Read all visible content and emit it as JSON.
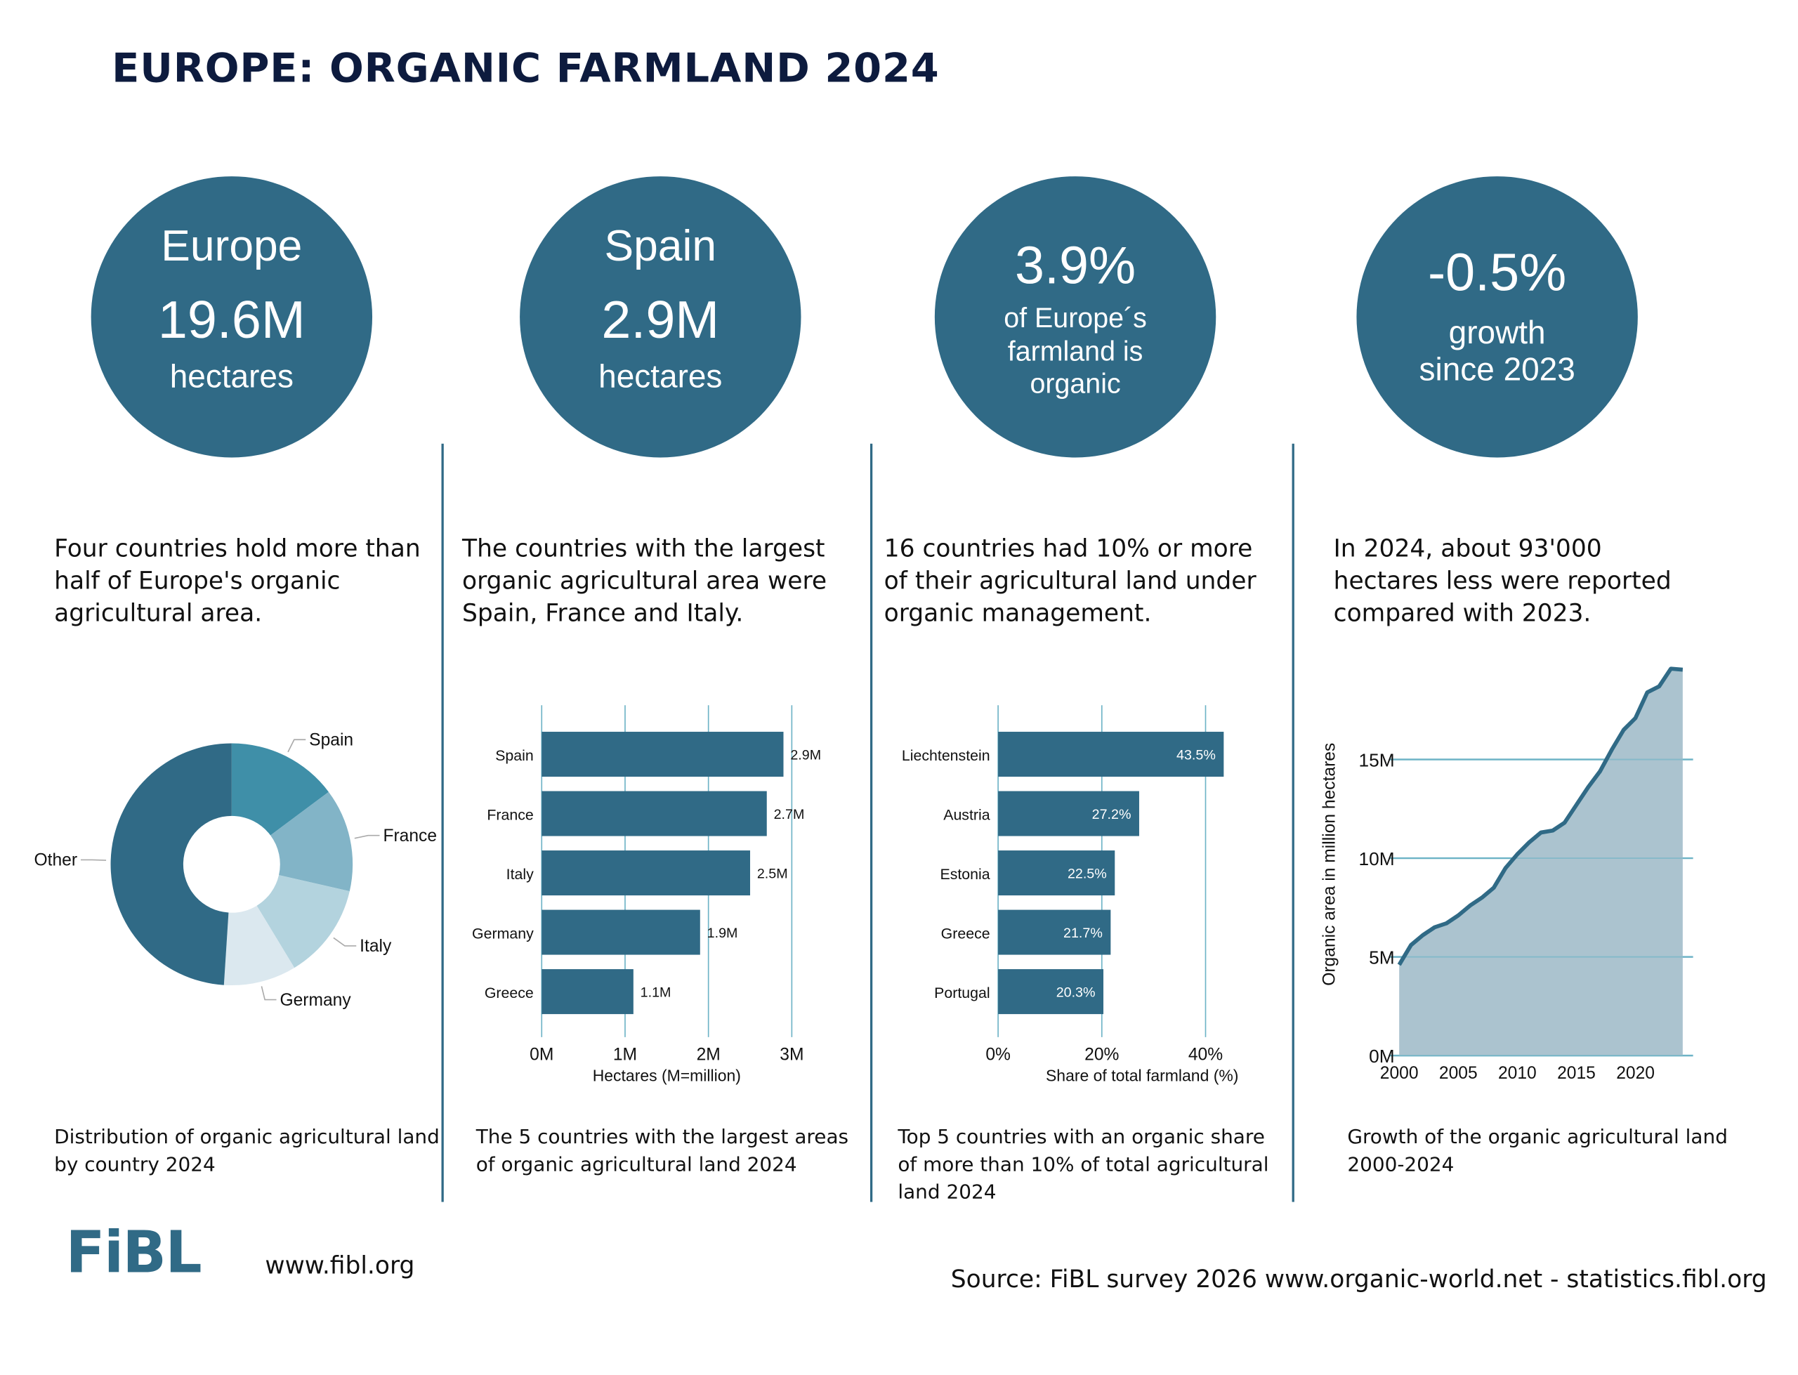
{
  "title": "EUROPE: ORGANIC FARMLAND 2024",
  "colors": {
    "primary": "#306a86",
    "spain": "#3f8fa8",
    "france": "#82b4c7",
    "italy": "#b3d3de",
    "germany": "#dbe8ef",
    "other": "#306a86",
    "area_fill": "#abc3cf",
    "grid": "#6db3c6"
  },
  "circles": [
    {
      "top": "Europe",
      "big": "19.6M",
      "bottom": "hectares"
    },
    {
      "top": "Spain",
      "big": "2.9M",
      "bottom": "hectares"
    },
    {
      "big": "3.9%",
      "l1": "of Europe´s",
      "l2": "farmland is",
      "l3": "organic"
    },
    {
      "big": "-0.5%",
      "l1": "growth",
      "l2": "since 2023"
    }
  ],
  "paragraphs": [
    "Four countries hold more than half of Europe's organic agricultural area.",
    "The countries with the largest organic agricultural area were Spain, France and Italy.",
    "16 countries had 10% or more of their agricultural land under organic management.",
    "In 2024, about 93'000 hectares less were reported compared with 2023."
  ],
  "captions": [
    "Distribution of organic agricultural land by country 2024",
    "The 5 countries with the largest areas of organic agricultural land 2024",
    "Top 5 countries with an organic  share of more than 10% of total agricultural land 2024",
    "Growth of the organic agricultural land 2000-2024"
  ],
  "chart_data": [
    {
      "type": "pie",
      "donut": true,
      "categories": [
        "Spain",
        "France",
        "Italy",
        "Germany",
        "Other"
      ],
      "values": [
        2.9,
        2.7,
        2.5,
        1.9,
        9.6
      ]
    },
    {
      "type": "bar",
      "orientation": "horizontal",
      "categories": [
        "Spain",
        "France",
        "Italy",
        "Germany",
        "Greece"
      ],
      "values": [
        2.9,
        2.7,
        2.5,
        1.9,
        1.1
      ],
      "data_labels": [
        "2.9M",
        "2.7M",
        "2.5M",
        "1.9M",
        "1.1M"
      ],
      "xlabel": "Hectares (M=million)",
      "xticks": [
        "0M",
        "1M",
        "2M",
        "3M"
      ],
      "xlim": [
        0,
        3
      ],
      "grid": true
    },
    {
      "type": "bar",
      "orientation": "horizontal",
      "categories": [
        "Liechtenstein",
        "Austria",
        "Estonia",
        "Greece",
        "Portugal"
      ],
      "values": [
        43.5,
        27.2,
        22.5,
        21.7,
        20.3
      ],
      "data_labels": [
        "43.5%",
        "27.2%",
        "22.5%",
        "21.7%",
        "20.3%"
      ],
      "xlabel": "Share of total farmland (%)",
      "xticks": [
        "0%",
        "20%",
        "40%"
      ],
      "xlim": [
        0,
        40
      ],
      "grid": true
    },
    {
      "type": "area",
      "x": [
        2000,
        2001,
        2002,
        2003,
        2004,
        2005,
        2006,
        2007,
        2008,
        2009,
        2010,
        2011,
        2012,
        2013,
        2014,
        2015,
        2016,
        2017,
        2018,
        2019,
        2020,
        2021,
        2022,
        2023,
        2024
      ],
      "y": [
        4.6,
        5.6,
        6.1,
        6.5,
        6.7,
        7.1,
        7.6,
        8.0,
        8.5,
        9.5,
        10.2,
        10.8,
        11.3,
        11.4,
        11.8,
        12.7,
        13.6,
        14.4,
        15.5,
        16.5,
        17.1,
        18.4,
        18.7,
        19.6,
        19.55
      ],
      "ylabel": "Organic area in million hectares",
      "yticks": [
        "0M",
        "5M",
        "10M",
        "15M"
      ],
      "xticks": [
        "2000",
        "2005",
        "2010",
        "2015",
        "2020"
      ],
      "ylim": [
        0,
        19.6
      ],
      "grid": true
    }
  ],
  "footer": {
    "logo": "FiBL",
    "website": "www.fibl.org",
    "source": "Source: FiBL survey 2026 www.organic-world.net - statistics.fibl.org"
  }
}
